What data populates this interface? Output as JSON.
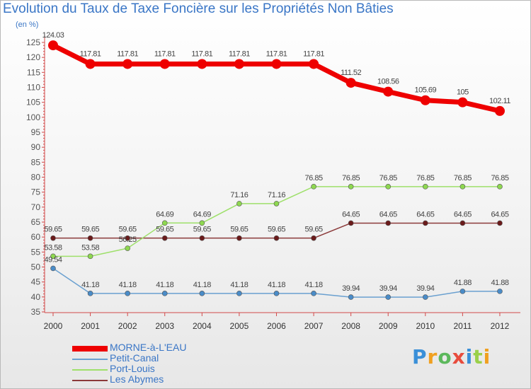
{
  "chart_data": {
    "type": "line",
    "title": "Evolution du Taux de Taxe Foncière sur les Propriétés Non Bâties",
    "unit_label": "(en %)",
    "x": [
      "2000",
      "2001",
      "2002",
      "2003",
      "2004",
      "2005",
      "2006",
      "2007",
      "2008",
      "2009",
      "2010",
      "2011",
      "2012"
    ],
    "ylim": [
      35,
      125
    ],
    "yticks": [
      35,
      40,
      45,
      50,
      55,
      60,
      65,
      70,
      75,
      80,
      85,
      90,
      95,
      100,
      105,
      110,
      115,
      120,
      125
    ],
    "grid": false,
    "legend_position": "bottom-left",
    "series": [
      {
        "name": "MORNE-à-L'EAU",
        "color": "#ee0000",
        "values": [
          124.03,
          117.81,
          117.81,
          117.81,
          117.81,
          117.81,
          117.81,
          117.81,
          111.52,
          108.56,
          105.69,
          105,
          102.11
        ],
        "labels": [
          "124.03",
          "117.81",
          "117.81",
          "117.81",
          "117.81",
          "117.81",
          "117.81",
          "117.81",
          "111.52",
          "108.56",
          "105.69",
          "105",
          "102.11"
        ]
      },
      {
        "name": "Petit-Canal",
        "color": "#6aa0d0",
        "values": [
          49.54,
          41.18,
          41.18,
          41.18,
          41.18,
          41.18,
          41.18,
          41.18,
          39.94,
          39.94,
          39.94,
          41.88,
          41.88
        ],
        "labels": [
          "49.54",
          "41.18",
          "41.18",
          "41.18",
          "41.18",
          "41.18",
          "41.18",
          "41.18",
          "39.94",
          "39.94",
          "39.94",
          "41.88",
          "41.88"
        ]
      },
      {
        "name": "Port-Louis",
        "color": "#9ee06a",
        "values": [
          53.58,
          53.58,
          56.25,
          64.69,
          64.69,
          71.16,
          71.16,
          76.85,
          76.85,
          76.85,
          76.85,
          76.85,
          76.85
        ],
        "labels": [
          "53.58",
          "53.58",
          "56.25",
          "64.69",
          "64.69",
          "71.16",
          "71.16",
          "76.85",
          "76.85",
          "76.85",
          "76.85",
          "76.85",
          "76.85"
        ]
      },
      {
        "name": "Les Abymes",
        "color": "#8b3a3a",
        "values": [
          59.65,
          59.65,
          59.65,
          59.65,
          59.65,
          59.65,
          59.65,
          59.65,
          64.65,
          64.65,
          64.65,
          64.65,
          64.65
        ],
        "labels": [
          "59.65",
          "59.65",
          "59.65",
          "59.65",
          "59.65",
          "59.65",
          "59.65",
          "59.65",
          "64.65",
          "64.65",
          "64.65",
          "64.65",
          "64.65"
        ]
      }
    ]
  },
  "logo": {
    "text": "Proxiti"
  }
}
